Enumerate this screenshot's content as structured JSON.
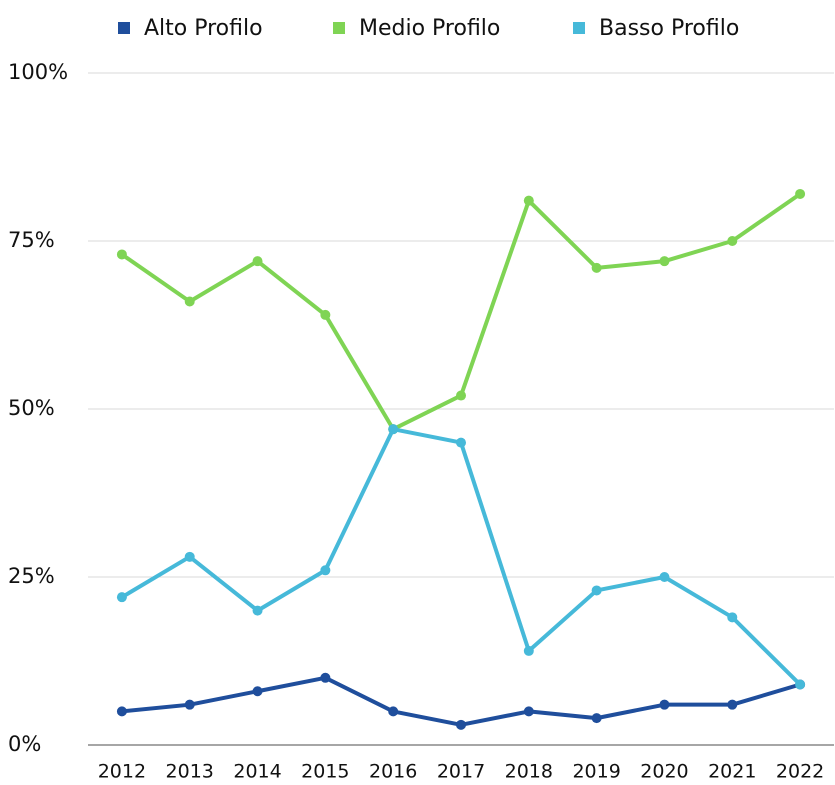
{
  "chart_data": {
    "type": "line",
    "categories": [
      "2012",
      "2013",
      "2014",
      "2015",
      "2016",
      "2017",
      "2018",
      "2019",
      "2020",
      "2021",
      "2022"
    ],
    "series": [
      {
        "name": "Alto Profilo",
        "color": "#1f4e9c",
        "values": [
          5,
          6,
          8,
          10,
          5,
          3,
          5,
          4,
          6,
          6,
          9
        ]
      },
      {
        "name": "Medio Profilo",
        "color": "#7fd454",
        "values": [
          73,
          66,
          72,
          64,
          47,
          52,
          81,
          71,
          72,
          75,
          82
        ]
      },
      {
        "name": "Basso Profilo",
        "color": "#46b9d9",
        "values": [
          22,
          28,
          20,
          26,
          47,
          45,
          14,
          23,
          25,
          19,
          9
        ]
      }
    ],
    "ylim": [
      0,
      100
    ],
    "yticks": [
      {
        "value": 0,
        "label": "0%"
      },
      {
        "value": 25,
        "label": "25%"
      },
      {
        "value": 50,
        "label": "50%"
      },
      {
        "value": 75,
        "label": "75%"
      },
      {
        "value": 100,
        "label": "100%"
      }
    ],
    "grid": true,
    "legend": "top"
  }
}
